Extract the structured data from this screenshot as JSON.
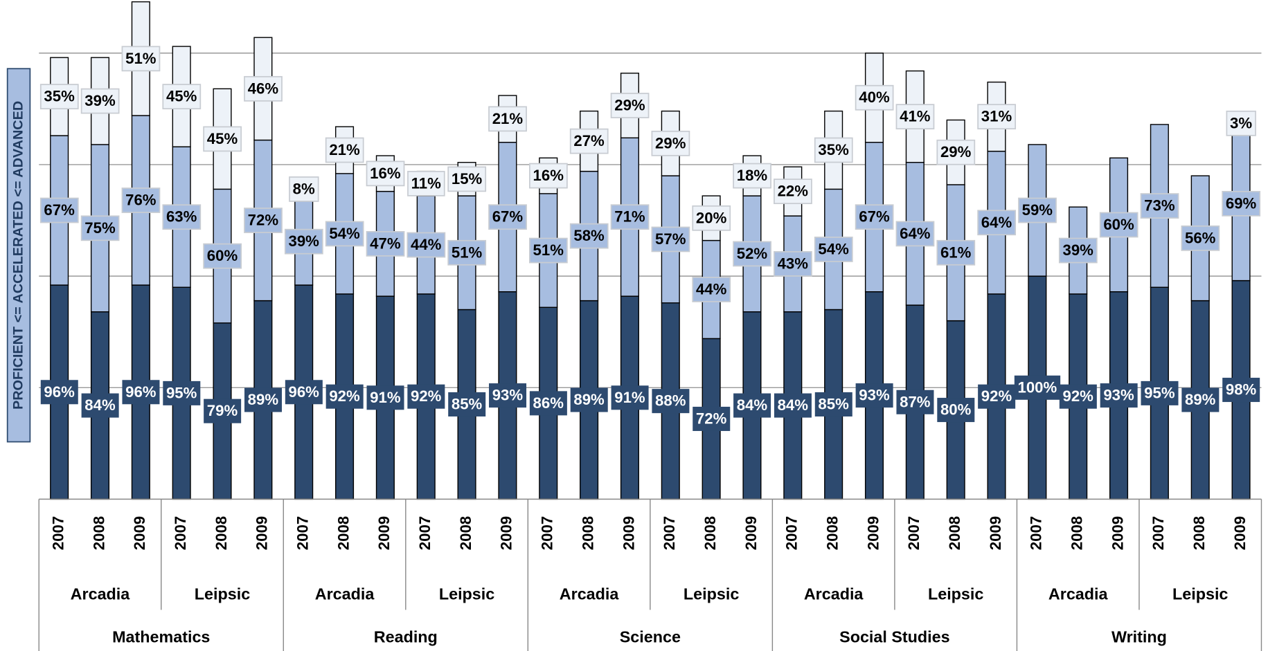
{
  "chart_data": {
    "type": "stacked_bar",
    "y_label": "PROFICIENT <= ACCELERATED <= ADVANCED",
    "categories": [
      "2007",
      "2008",
      "2009",
      "2007",
      "2008",
      "2009",
      "2007",
      "2008",
      "2009",
      "2007",
      "2008",
      "2009",
      "2007",
      "2008",
      "2009",
      "2007",
      "2008",
      "2009",
      "2007",
      "2008",
      "2009",
      "2007",
      "2008",
      "2009",
      "2007",
      "2008",
      "2009",
      "2007",
      "2008",
      "2009"
    ],
    "schools": [
      "Arcadia",
      "Leipsic",
      "Arcadia",
      "Leipsic",
      "Arcadia",
      "Leipsic",
      "Arcadia",
      "Leipsic",
      "Arcadia",
      "Leipsic"
    ],
    "subjects": [
      "Mathematics",
      "Reading",
      "Science",
      "Social Studies",
      "Writing"
    ],
    "ylim": [
      0,
      222
    ],
    "yticks": [
      50,
      100,
      150,
      200
    ],
    "grid": true,
    "series": [
      {
        "name": "PROFICIENT",
        "color": "#2d4a6f",
        "label_color": "#ffffff",
        "values": [
          96,
          84,
          96,
          95,
          79,
          89,
          96,
          92,
          91,
          92,
          85,
          93,
          86,
          89,
          91,
          88,
          72,
          84,
          84,
          85,
          93,
          87,
          80,
          92,
          100,
          92,
          93,
          95,
          89,
          98
        ],
        "value_labels": [
          "96%",
          "84%",
          "96%",
          "95%",
          "79%",
          "89%",
          "96%",
          "92%",
          "91%",
          "92%",
          "85%",
          "93%",
          "86%",
          "89%",
          "91%",
          "88%",
          "72%",
          "84%",
          "84%",
          "85%",
          "93%",
          "87%",
          "80%",
          "92%",
          "100%",
          "92%",
          "93%",
          "95%",
          "89%",
          "98%"
        ]
      },
      {
        "name": "ACCELERATED",
        "color": "#a7bde0",
        "label_color": "#000000",
        "values": [
          67,
          75,
          76,
          63,
          60,
          72,
          39,
          54,
          47,
          44,
          51,
          67,
          51,
          58,
          71,
          57,
          44,
          52,
          43,
          54,
          67,
          64,
          61,
          64,
          59,
          39,
          60,
          73,
          56,
          69
        ],
        "value_labels": [
          "67%",
          "75%",
          "76%",
          "63%",
          "60%",
          "72%",
          "39%",
          "54%",
          "47%",
          "44%",
          "51%",
          "67%",
          "51%",
          "58%",
          "71%",
          "57%",
          "44%",
          "52%",
          "43%",
          "54%",
          "67%",
          "64%",
          "61%",
          "64%",
          "59%",
          "39%",
          "60%",
          "73%",
          "56%",
          "69%"
        ]
      },
      {
        "name": "ADVANCED",
        "color": "#edf2f8",
        "label_color": "#000000",
        "values": [
          35,
          39,
          51,
          45,
          45,
          46,
          8,
          21,
          16,
          11,
          15,
          21,
          16,
          27,
          29,
          29,
          20,
          18,
          22,
          35,
          40,
          41,
          29,
          31,
          null,
          null,
          null,
          null,
          null,
          3
        ],
        "value_labels": [
          "35%",
          "39%",
          "51%",
          "45%",
          "45%",
          "46%",
          "8%",
          "21%",
          "16%",
          "11%",
          "15%",
          "21%",
          "16%",
          "27%",
          "29%",
          "29%",
          "20%",
          "18%",
          "22%",
          "35%",
          "40%",
          "41%",
          "29%",
          "31%",
          null,
          null,
          null,
          null,
          null,
          "3%"
        ]
      }
    ]
  }
}
